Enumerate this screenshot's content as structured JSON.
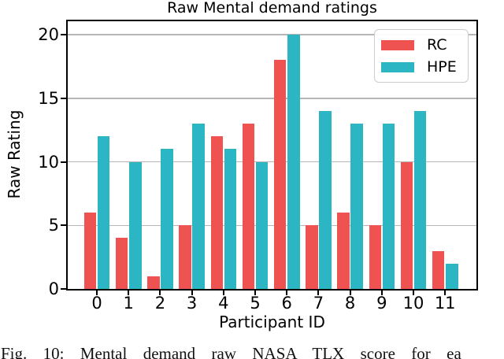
{
  "figure": {
    "caption": "Fig. 10: Mental demand raw NASA TLX score for ea"
  },
  "chart_data": {
    "type": "bar",
    "title": "Raw Mental demand ratings",
    "xlabel": "Participant ID",
    "ylabel": "Raw Rating",
    "categories": [
      "0",
      "1",
      "2",
      "3",
      "4",
      "5",
      "6",
      "7",
      "8",
      "9",
      "10",
      "11"
    ],
    "series": [
      {
        "name": "RC",
        "color": "#ee5251",
        "values": [
          6,
          4,
          1,
          5,
          12,
          13,
          18,
          5,
          6,
          5,
          10,
          3
        ]
      },
      {
        "name": "HPE",
        "color": "#2cb6c4",
        "values": [
          12,
          10,
          11,
          13,
          11,
          10,
          20,
          14,
          13,
          13,
          14,
          2
        ]
      }
    ],
    "yticks": [
      0,
      5,
      10,
      15,
      20
    ],
    "ylim": [
      0,
      21.2
    ],
    "grid": true,
    "grid_color": "#b6b6b6",
    "legend_position": "upper right"
  }
}
